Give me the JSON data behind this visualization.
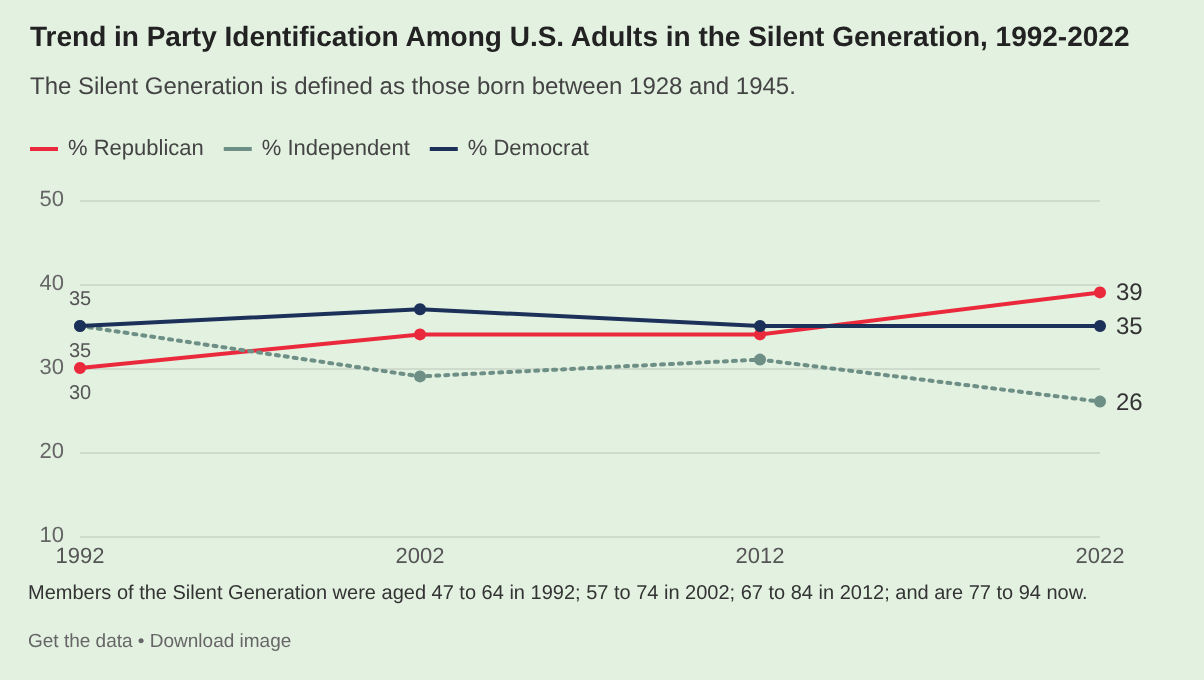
{
  "chart_data": {
    "type": "line",
    "title": "Trend in Party Identification Among U.S. Adults in the Silent Generation, 1992-2022",
    "subtitle": "The Silent Generation is defined as those born between 1928 and 1945.",
    "x": [
      1992,
      2002,
      2012,
      2022
    ],
    "series": [
      {
        "name": "% Republican",
        "color": "#ea2a3c",
        "values": [
          30,
          34,
          34,
          39
        ],
        "value_labels": [
          "30",
          null,
          null,
          "39"
        ],
        "line_style": "solid"
      },
      {
        "name": "% Independent",
        "color": "#6e8f86",
        "values": [
          35,
          29,
          31,
          26
        ],
        "value_labels": [
          "35",
          null,
          null,
          "26"
        ],
        "line_style": "dotted"
      },
      {
        "name": "% Democrat",
        "color": "#1c3159",
        "values": [
          35,
          37,
          35,
          35
        ],
        "value_labels": [
          "35",
          null,
          null,
          "35"
        ],
        "line_style": "solid"
      }
    ],
    "xlim": [
      1992,
      2022
    ],
    "xticks": [
      1992,
      2002,
      2012,
      2022
    ],
    "ylim": [
      10,
      50
    ],
    "yticks": [
      10,
      20,
      30,
      40,
      50
    ],
    "grid": "y",
    "legend": "top left",
    "marker": "circle",
    "annotations": [
      "Members of the Silent Generation were aged 47 to 64 in 1992; 57 to 74 in 2002; 67 to 84 in 2012; and are 77 to 94 now.",
      "Get the data • Download image"
    ]
  }
}
